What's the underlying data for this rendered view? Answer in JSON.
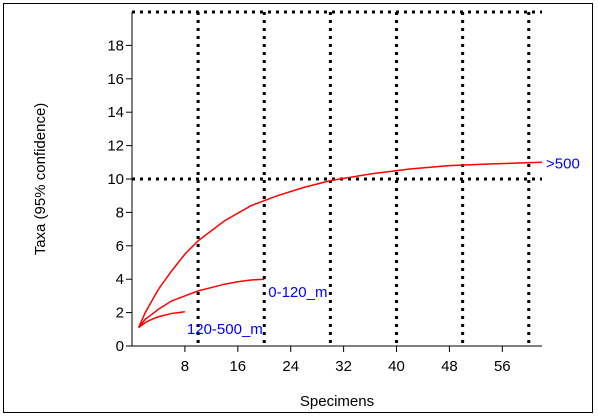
{
  "chart_data": {
    "type": "line",
    "title": "",
    "xlabel": "Specimens",
    "ylabel": "Taxa (95% confidence)",
    "xlim": [
      0,
      62
    ],
    "ylim": [
      0,
      20
    ],
    "x_ticks": [
      8,
      16,
      24,
      32,
      40,
      48,
      56
    ],
    "y_ticks": [
      0,
      2,
      4,
      6,
      8,
      10,
      12,
      14,
      16,
      18
    ],
    "grid": "off",
    "reference_lines": {
      "vertical_x": [
        10,
        20,
        30,
        40,
        50,
        60
      ],
      "horizontal_y": [
        10,
        20
      ],
      "style": "dotted"
    },
    "series": [
      {
        "name": ">500",
        "color": "#ff0000",
        "label_color": "#0000ff",
        "x": [
          1,
          2,
          4,
          6,
          8,
          10,
          14,
          18,
          22,
          26,
          30,
          36,
          42,
          48,
          54,
          62
        ],
        "y": [
          1.1,
          2.0,
          3.4,
          4.5,
          5.5,
          6.3,
          7.5,
          8.4,
          9.0,
          9.5,
          9.9,
          10.3,
          10.6,
          10.8,
          10.9,
          11.0
        ]
      },
      {
        "name": "0-120_m",
        "color": "#ff0000",
        "label_color": "#0000ff",
        "x": [
          1,
          2,
          4,
          6,
          8,
          10,
          12,
          14,
          16,
          18,
          20
        ],
        "y": [
          1.1,
          1.6,
          2.2,
          2.7,
          3.0,
          3.3,
          3.5,
          3.7,
          3.85,
          3.95,
          4.0
        ]
      },
      {
        "name": "120-500_m",
        "color": "#ff0000",
        "label_color": "#0000ff",
        "x": [
          1,
          2,
          3,
          4,
          5,
          6,
          7,
          8
        ],
        "y": [
          1.1,
          1.4,
          1.6,
          1.75,
          1.85,
          1.95,
          2.0,
          2.05
        ]
      }
    ]
  }
}
